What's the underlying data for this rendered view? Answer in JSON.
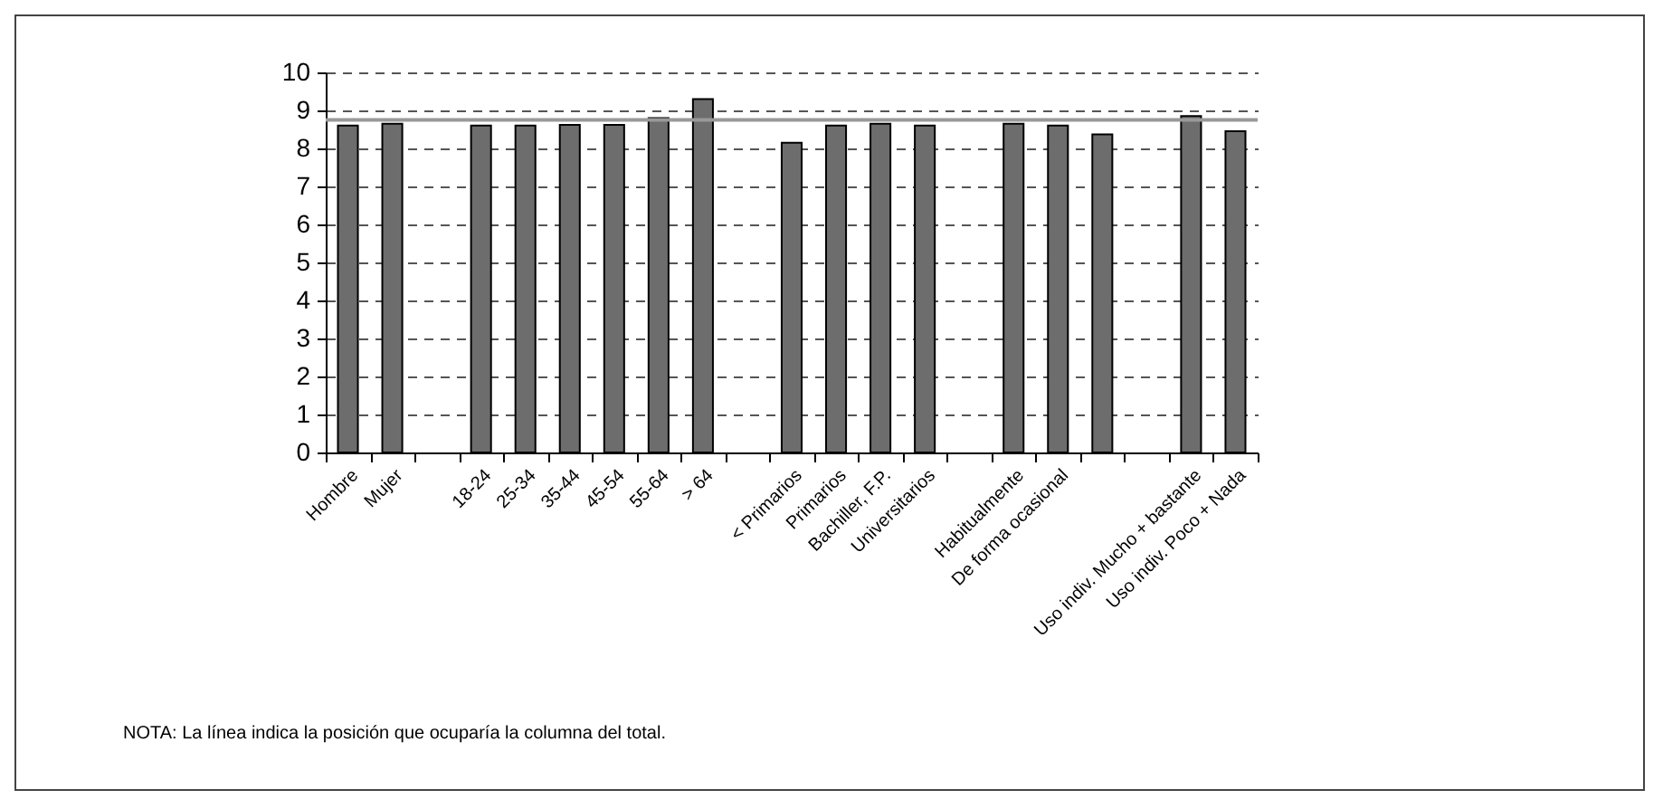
{
  "chart_data": {
    "type": "bar",
    "categories": [
      "Hombre",
      "Mujer",
      null,
      "18-24",
      "25-34",
      "35-44",
      "45-54",
      "55-64",
      "> 64",
      null,
      "< Primarios",
      "Primarios",
      "Bachiller, F.P.",
      "Universitarios",
      null,
      "Habitualmente",
      "De forma ocasional",
      null,
      null,
      "Uso indiv. Mucho + bastante",
      "Uso indiv. Poco + Nada"
    ],
    "values": [
      8.6,
      8.65,
      null,
      8.6,
      8.6,
      8.62,
      8.62,
      8.8,
      9.3,
      null,
      8.15,
      8.6,
      8.65,
      8.6,
      null,
      8.65,
      8.6,
      8.37,
      null,
      8.85,
      8.45
    ],
    "color": "#6d6d6d",
    "ylim": [
      0,
      10
    ],
    "yticks": [
      0,
      1,
      2,
      3,
      4,
      5,
      6,
      7,
      8,
      9,
      10
    ],
    "grid": "y",
    "ref_lines": [
      {
        "axis": "y",
        "value": 8.75,
        "color": "#999999"
      }
    ],
    "annotations": [
      "NOTA: La línea indica la posición que ocuparía la columna del total."
    ]
  }
}
